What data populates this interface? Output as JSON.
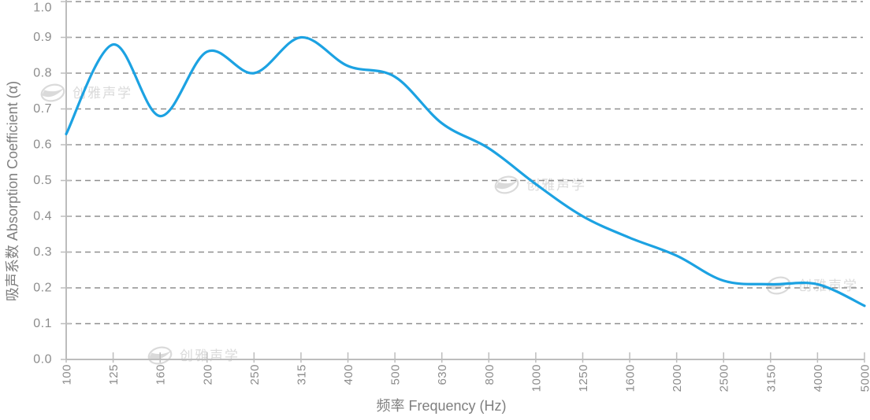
{
  "chart_data": {
    "type": "line",
    "title": "",
    "xlabel": "频率 Frequency (Hz)",
    "ylabel": "吸声系数 Absorption Coefficient (α)",
    "categories": [
      "100",
      "125",
      "160",
      "200",
      "250",
      "315",
      "400",
      "500",
      "630",
      "800",
      "1000",
      "1250",
      "1600",
      "2000",
      "2500",
      "3150",
      "4000",
      "5000"
    ],
    "values": [
      0.63,
      0.88,
      0.68,
      0.86,
      0.8,
      0.9,
      0.82,
      0.79,
      0.66,
      0.59,
      0.49,
      0.4,
      0.34,
      0.29,
      0.22,
      0.21,
      0.21,
      0.15
    ],
    "ylim": [
      0.0,
      1.0
    ],
    "y_ticks": [
      "0.0",
      "0.1",
      "0.2",
      "0.3",
      "0.4",
      "0.5",
      "0.6",
      "0.7",
      "0.8",
      "0.9",
      "1.0"
    ],
    "x_scale": "one-third-octave bands, evenly spaced",
    "grid": "horizontal dashed lines at every 0.1",
    "legend": "none",
    "smoothing": "smoothed spline line, no markers"
  },
  "colors": {
    "line": "#1CA2E2",
    "grid": "#8F8F8F",
    "axis": "#BDBDBD",
    "tick_label": "#8C8C8C",
    "axis_title": "#7F7F7F",
    "watermark": "#DADADA",
    "background": "#FFFFFF"
  },
  "watermark": {
    "text": "创雅声学",
    "count": 4
  }
}
